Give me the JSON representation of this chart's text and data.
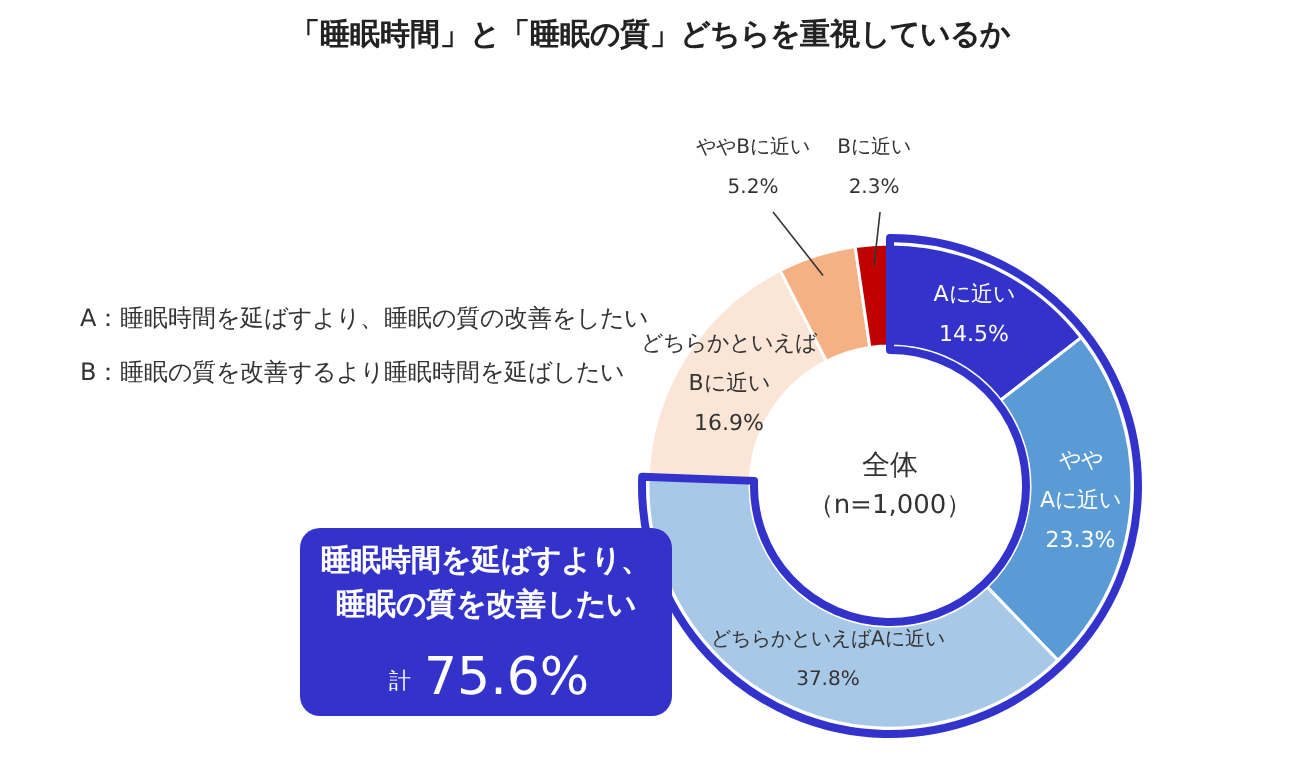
{
  "chart_data": {
    "type": "donut",
    "title": "「睡眠時間」と「睡眠の質」どちらを重視しているか",
    "categories": [
      "Aに近い",
      "やや\nAに近い",
      "どちらかといえばAに近い",
      "どちらかといえば\nBに近い",
      "ややBに近い",
      "Bに近い"
    ],
    "values": [
      14.5,
      23.3,
      37.8,
      16.9,
      5.2,
      2.3
    ],
    "value_labels": [
      "14.5%",
      "23.3%",
      "37.8%",
      "16.9%",
      "5.2%",
      "2.3%"
    ],
    "colors": [
      "#3333cc",
      "#5b9bd5",
      "#a8c8e8",
      "#fbe5d6",
      "#f4b183",
      "#c00000"
    ],
    "annotations": [
      "A：睡眠時間を延ばすより、睡眠の質の改善をしたい",
      "B：睡眠の質を改善するより睡眠時間を延ばしたい",
      "全体",
      "（n=1,000）",
      "睡眠時間を延ばすより、",
      "睡眠の質を改善したい",
      "計",
      "75.6%"
    ]
  }
}
